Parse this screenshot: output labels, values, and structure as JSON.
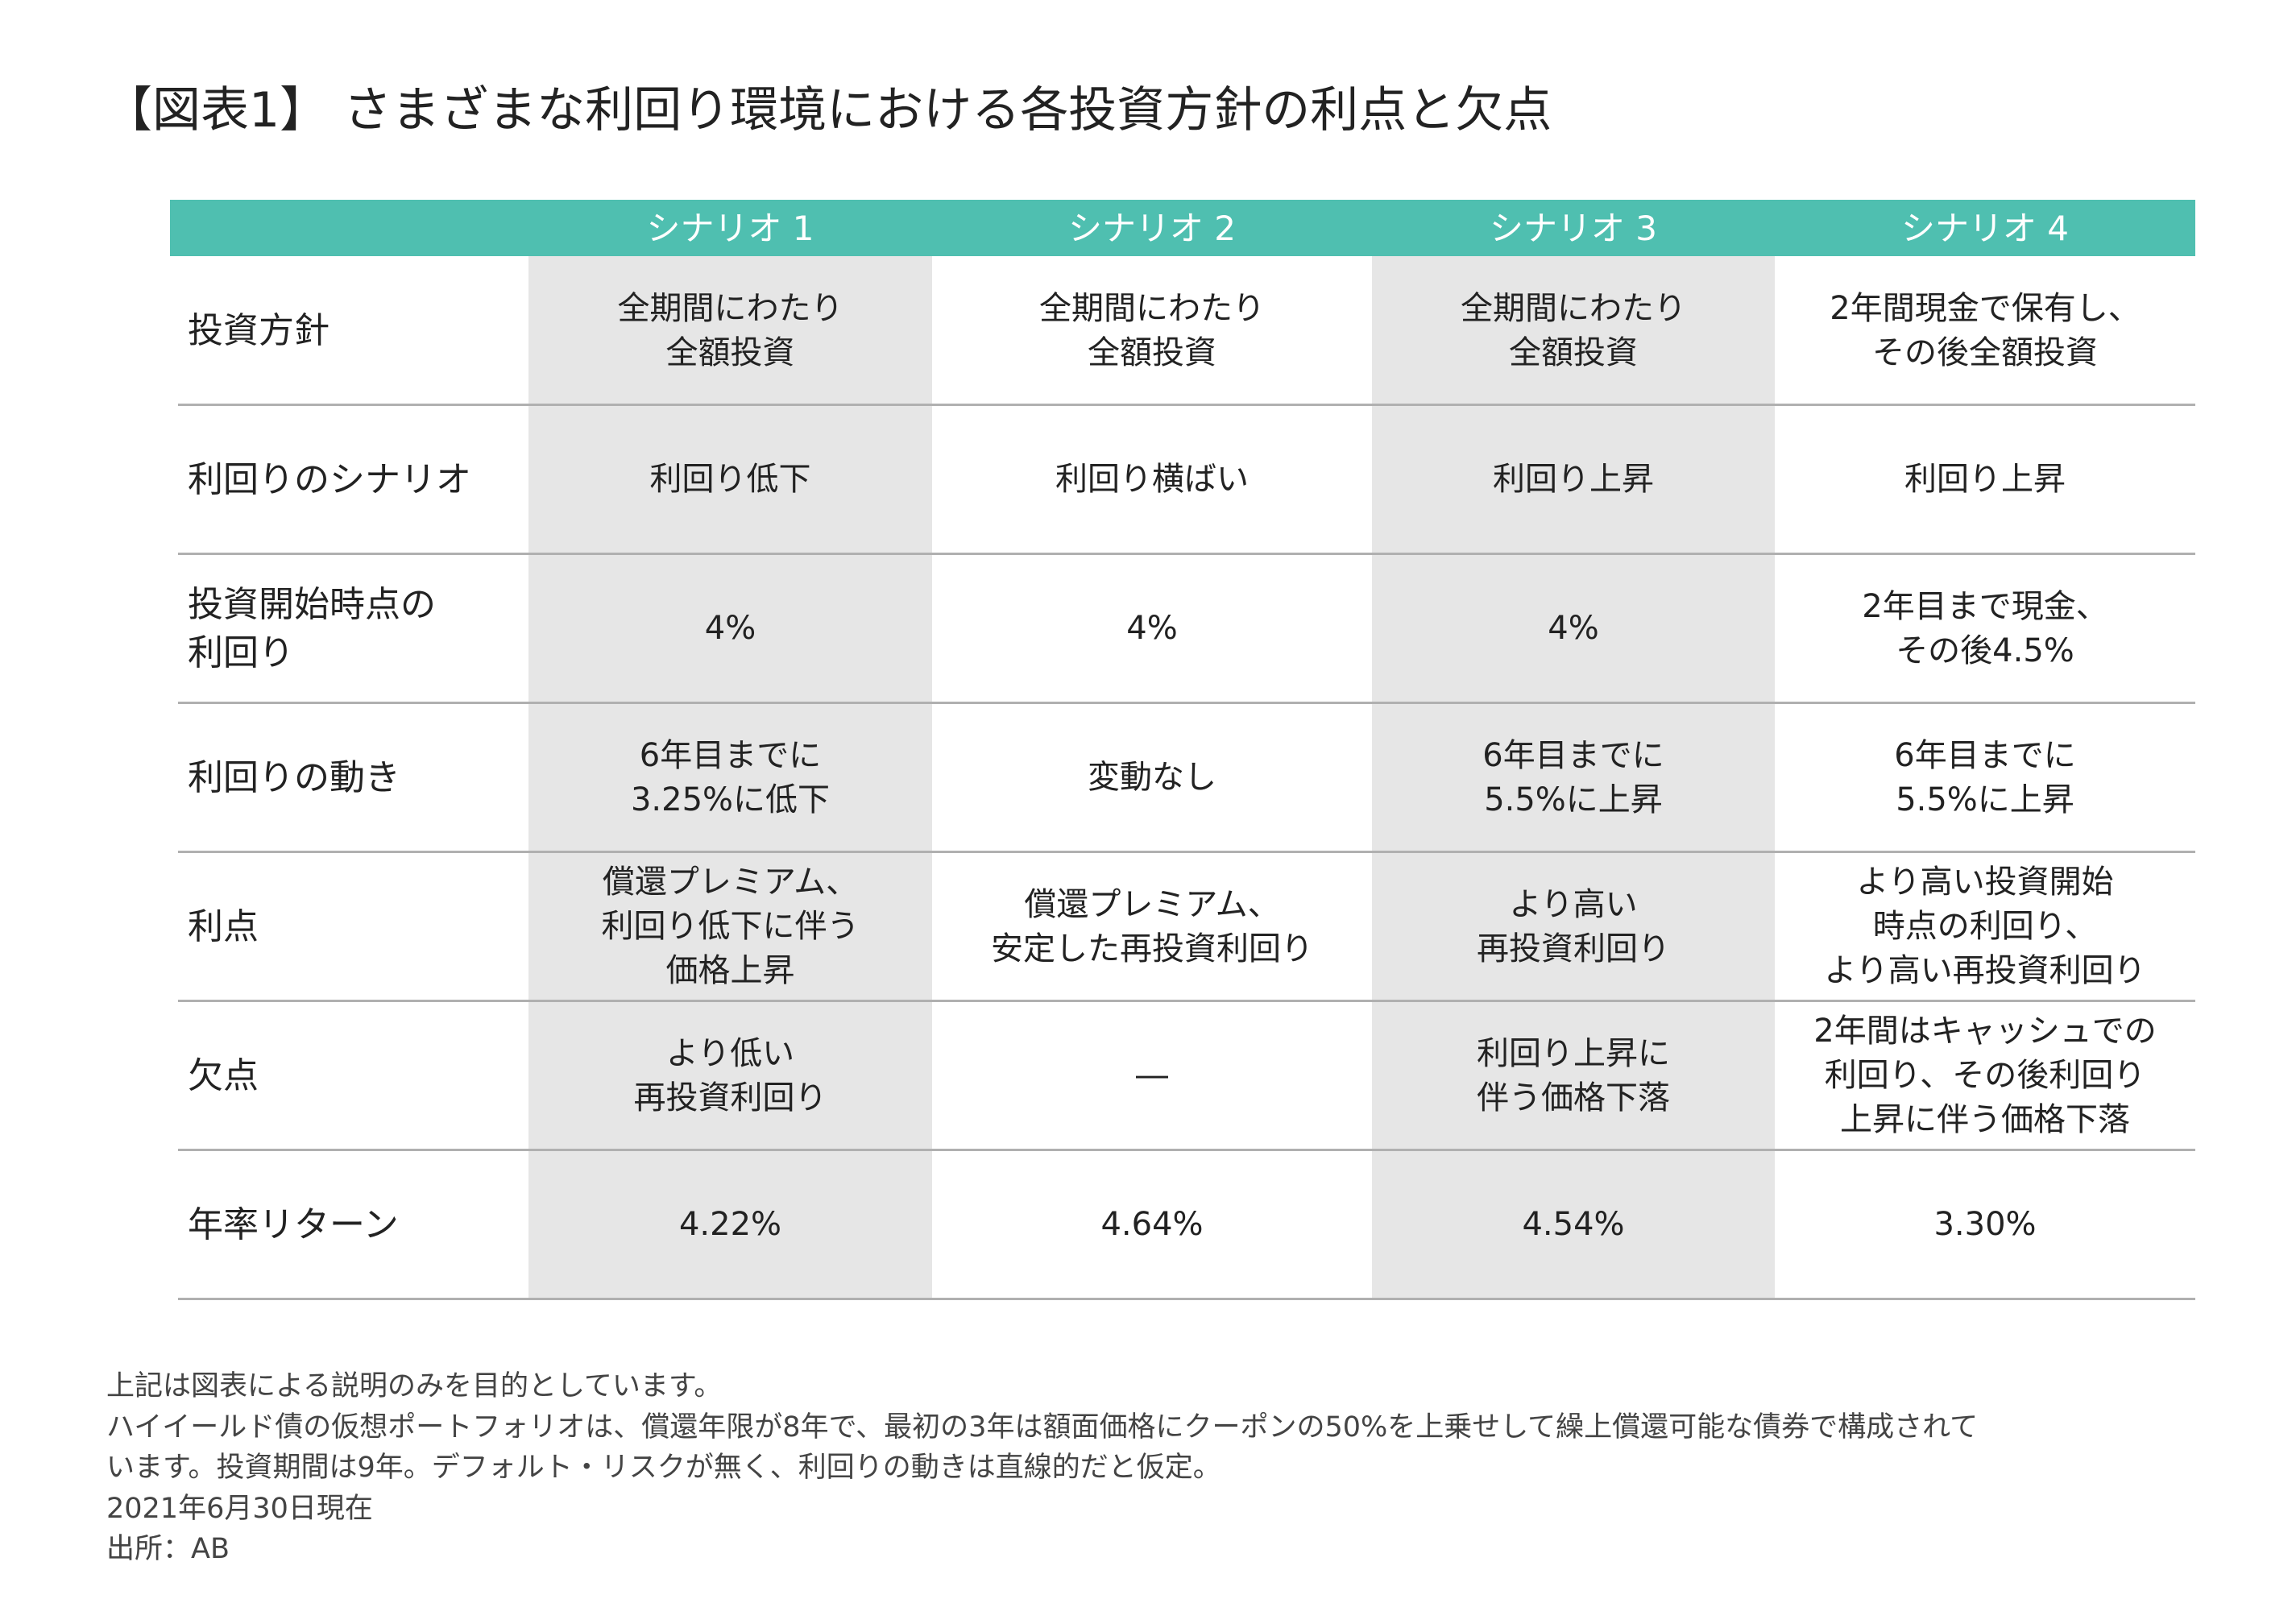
{
  "title": "【図表1】 さまざまな利回り環境における各投資方針の利点と欠点",
  "table": {
    "header": [
      "シナリオ 1",
      "シナリオ 2",
      "シナリオ 3",
      "シナリオ 4"
    ],
    "rows": [
      {
        "label": [
          "投資方針"
        ],
        "cells": [
          [
            "全期間にわたり",
            "全額投資"
          ],
          [
            "全期間にわたり",
            "全額投資"
          ],
          [
            "全期間にわたり",
            "全額投資"
          ],
          [
            "2年間現金で保有し、",
            "その後全額投資"
          ]
        ]
      },
      {
        "label": [
          "利回りのシナリオ"
        ],
        "cells": [
          [
            "利回り低下"
          ],
          [
            "利回り横ばい"
          ],
          [
            "利回り上昇"
          ],
          [
            "利回り上昇"
          ]
        ]
      },
      {
        "label": [
          "投資開始時点の",
          "利回り"
        ],
        "cells": [
          [
            "4%"
          ],
          [
            "4%"
          ],
          [
            "4%"
          ],
          [
            "2年目まで現金、",
            "その後4.5%"
          ]
        ]
      },
      {
        "label": [
          "利回りの動き"
        ],
        "cells": [
          [
            "6年目までに",
            "3.25%に低下"
          ],
          [
            "変動なし"
          ],
          [
            "6年目までに",
            "5.5%に上昇"
          ],
          [
            "6年目までに",
            "5.5%に上昇"
          ]
        ]
      },
      {
        "label": [
          "利点"
        ],
        "cells": [
          [
            "償還プレミアム、",
            "利回り低下に伴う",
            "価格上昇"
          ],
          [
            "償還プレミアム、",
            "安定した再投資利回り"
          ],
          [
            "より高い",
            "再投資利回り"
          ],
          [
            "より高い投資開始",
            "時点の利回り、",
            "より高い再投資利回り"
          ]
        ]
      },
      {
        "label": [
          "欠点"
        ],
        "cells": [
          [
            "より低い",
            "再投資利回り"
          ],
          [
            "―"
          ],
          [
            "利回り上昇に",
            "伴う価格下落"
          ],
          [
            "2年間はキャッシュでの",
            "利回り、その後利回り",
            "上昇に伴う価格下落"
          ]
        ]
      },
      {
        "label": [
          "年率リターン"
        ],
        "cells": [
          [
            "4.22%"
          ],
          [
            "4.64%"
          ],
          [
            "4.54%"
          ],
          [
            "3.30%"
          ]
        ]
      }
    ]
  },
  "footnotes": [
    "上記は図表による説明のみを目的としています。",
    "ハイイールド債の仮想ポートフォリオは、償還年限が8年で、最初の3年は額面価格にクーポンの50%を上乗せして繰上償還可能な債券で構成されて",
    "います。投資期間は9年。デフォルト・リスクが無く、利回りの動きは直線的だと仮定。",
    "2021年6月30日現在",
    "出所：AB"
  ]
}
